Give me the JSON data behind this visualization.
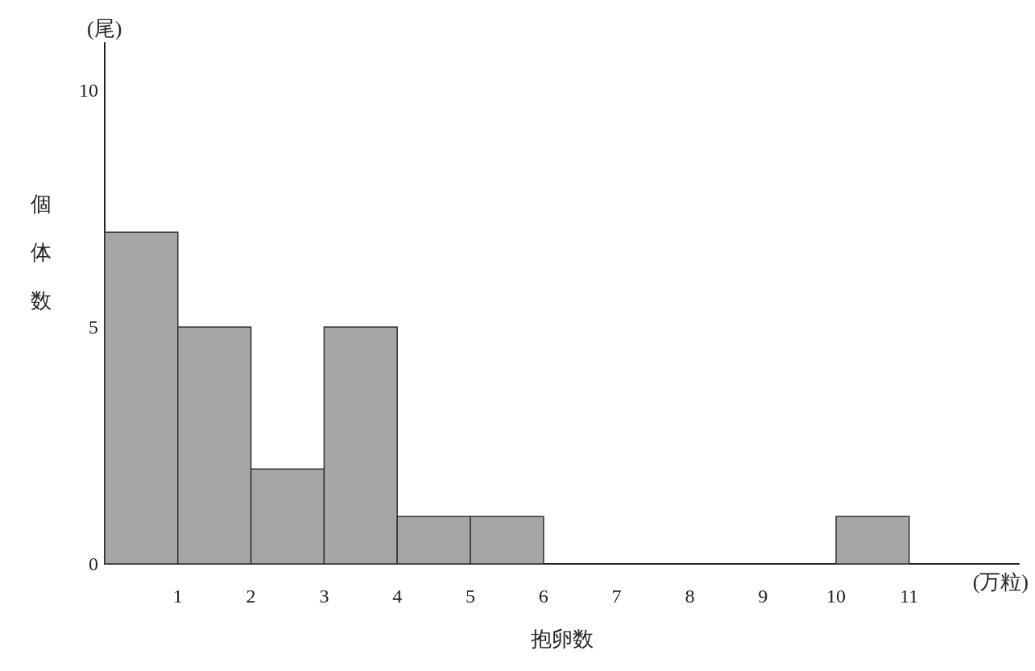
{
  "chart_data": {
    "type": "histogram",
    "xlabel": "抱卵数",
    "ylabel": "個体数",
    "annotations": [
      "(尾)",
      "(万粒)"
    ],
    "bins": [
      0,
      1,
      2,
      3,
      4,
      5,
      6,
      7,
      8,
      9,
      10,
      11
    ],
    "values": [
      7,
      5,
      2,
      5,
      1,
      1,
      0,
      0,
      0,
      0,
      1
    ],
    "color": "#a6a6a6",
    "xlim": [
      0,
      12.5
    ],
    "xticks": [
      1,
      2,
      3,
      4,
      5,
      6,
      7,
      8,
      9,
      10,
      11
    ],
    "ylim": [
      0,
      11
    ],
    "yticks": [
      0,
      5,
      10
    ],
    "grid": false
  }
}
